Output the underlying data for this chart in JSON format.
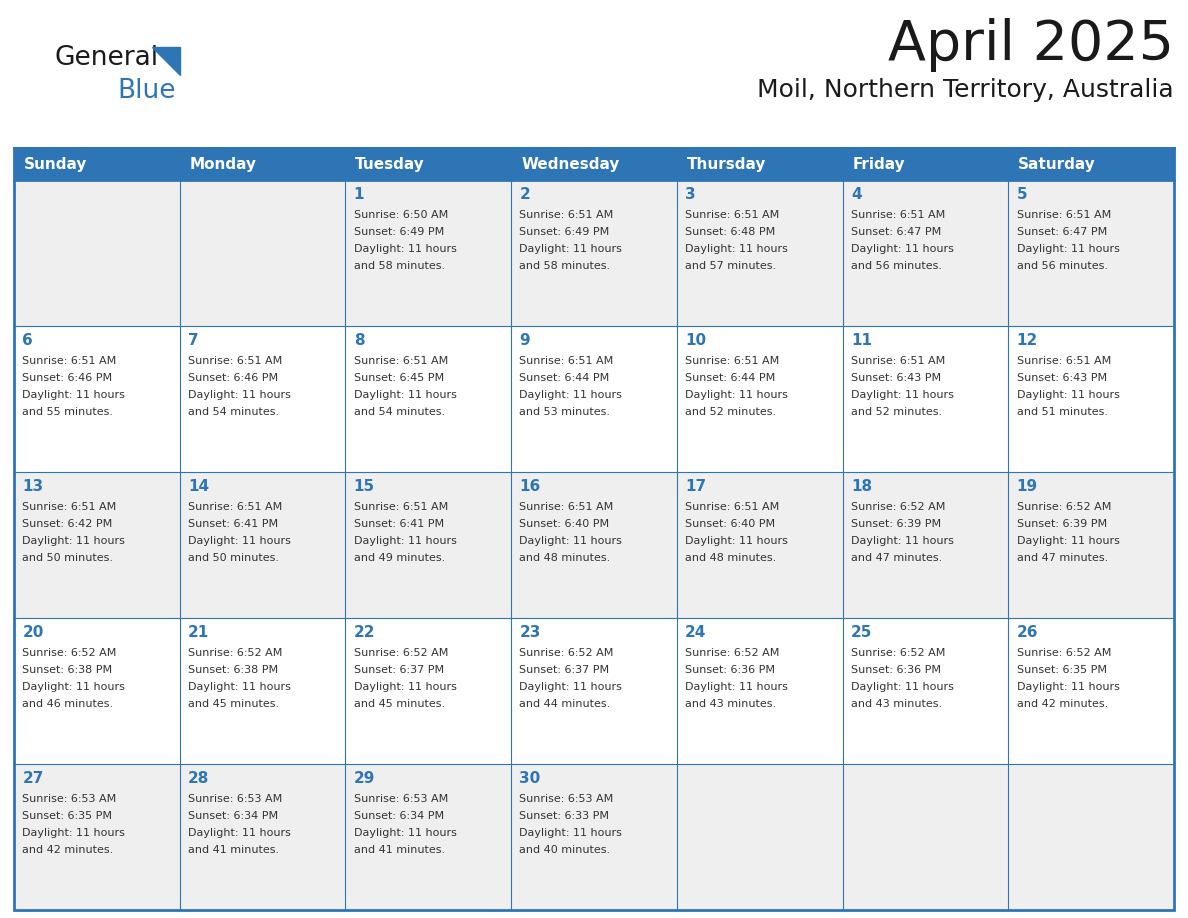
{
  "title": "April 2025",
  "subtitle": "Moil, Northern Territory, Australia",
  "header_bg": "#2E75B6",
  "header_text_color": "#FFFFFF",
  "cell_bg_even": "#EFEFEF",
  "cell_bg_odd": "#FFFFFF",
  "day_headers": [
    "Sunday",
    "Monday",
    "Tuesday",
    "Wednesday",
    "Thursday",
    "Friday",
    "Saturday"
  ],
  "grid_color": "#2E75B6",
  "title_color": "#1a1a1a",
  "subtitle_color": "#1a1a1a",
  "day_num_color": "#2E75B6",
  "cell_text_color": "#333333",
  "logo_general_color": "#1a1a1a",
  "logo_blue_color": "#2E75B6",
  "weeks": [
    [
      {
        "day": "",
        "sunrise": "",
        "sunset": "",
        "daylight": ""
      },
      {
        "day": "",
        "sunrise": "",
        "sunset": "",
        "daylight": ""
      },
      {
        "day": "1",
        "sunrise": "6:50 AM",
        "sunset": "6:49 PM",
        "daylight": "11 hours\nand 58 minutes."
      },
      {
        "day": "2",
        "sunrise": "6:51 AM",
        "sunset": "6:49 PM",
        "daylight": "11 hours\nand 58 minutes."
      },
      {
        "day": "3",
        "sunrise": "6:51 AM",
        "sunset": "6:48 PM",
        "daylight": "11 hours\nand 57 minutes."
      },
      {
        "day": "4",
        "sunrise": "6:51 AM",
        "sunset": "6:47 PM",
        "daylight": "11 hours\nand 56 minutes."
      },
      {
        "day": "5",
        "sunrise": "6:51 AM",
        "sunset": "6:47 PM",
        "daylight": "11 hours\nand 56 minutes."
      }
    ],
    [
      {
        "day": "6",
        "sunrise": "6:51 AM",
        "sunset": "6:46 PM",
        "daylight": "11 hours\nand 55 minutes."
      },
      {
        "day": "7",
        "sunrise": "6:51 AM",
        "sunset": "6:46 PM",
        "daylight": "11 hours\nand 54 minutes."
      },
      {
        "day": "8",
        "sunrise": "6:51 AM",
        "sunset": "6:45 PM",
        "daylight": "11 hours\nand 54 minutes."
      },
      {
        "day": "9",
        "sunrise": "6:51 AM",
        "sunset": "6:44 PM",
        "daylight": "11 hours\nand 53 minutes."
      },
      {
        "day": "10",
        "sunrise": "6:51 AM",
        "sunset": "6:44 PM",
        "daylight": "11 hours\nand 52 minutes."
      },
      {
        "day": "11",
        "sunrise": "6:51 AM",
        "sunset": "6:43 PM",
        "daylight": "11 hours\nand 52 minutes."
      },
      {
        "day": "12",
        "sunrise": "6:51 AM",
        "sunset": "6:43 PM",
        "daylight": "11 hours\nand 51 minutes."
      }
    ],
    [
      {
        "day": "13",
        "sunrise": "6:51 AM",
        "sunset": "6:42 PM",
        "daylight": "11 hours\nand 50 minutes."
      },
      {
        "day": "14",
        "sunrise": "6:51 AM",
        "sunset": "6:41 PM",
        "daylight": "11 hours\nand 50 minutes."
      },
      {
        "day": "15",
        "sunrise": "6:51 AM",
        "sunset": "6:41 PM",
        "daylight": "11 hours\nand 49 minutes."
      },
      {
        "day": "16",
        "sunrise": "6:51 AM",
        "sunset": "6:40 PM",
        "daylight": "11 hours\nand 48 minutes."
      },
      {
        "day": "17",
        "sunrise": "6:51 AM",
        "sunset": "6:40 PM",
        "daylight": "11 hours\nand 48 minutes."
      },
      {
        "day": "18",
        "sunrise": "6:52 AM",
        "sunset": "6:39 PM",
        "daylight": "11 hours\nand 47 minutes."
      },
      {
        "day": "19",
        "sunrise": "6:52 AM",
        "sunset": "6:39 PM",
        "daylight": "11 hours\nand 47 minutes."
      }
    ],
    [
      {
        "day": "20",
        "sunrise": "6:52 AM",
        "sunset": "6:38 PM",
        "daylight": "11 hours\nand 46 minutes."
      },
      {
        "day": "21",
        "sunrise": "6:52 AM",
        "sunset": "6:38 PM",
        "daylight": "11 hours\nand 45 minutes."
      },
      {
        "day": "22",
        "sunrise": "6:52 AM",
        "sunset": "6:37 PM",
        "daylight": "11 hours\nand 45 minutes."
      },
      {
        "day": "23",
        "sunrise": "6:52 AM",
        "sunset": "6:37 PM",
        "daylight": "11 hours\nand 44 minutes."
      },
      {
        "day": "24",
        "sunrise": "6:52 AM",
        "sunset": "6:36 PM",
        "daylight": "11 hours\nand 43 minutes."
      },
      {
        "day": "25",
        "sunrise": "6:52 AM",
        "sunset": "6:36 PM",
        "daylight": "11 hours\nand 43 minutes."
      },
      {
        "day": "26",
        "sunrise": "6:52 AM",
        "sunset": "6:35 PM",
        "daylight": "11 hours\nand 42 minutes."
      }
    ],
    [
      {
        "day": "27",
        "sunrise": "6:53 AM",
        "sunset": "6:35 PM",
        "daylight": "11 hours\nand 42 minutes."
      },
      {
        "day": "28",
        "sunrise": "6:53 AM",
        "sunset": "6:34 PM",
        "daylight": "11 hours\nand 41 minutes."
      },
      {
        "day": "29",
        "sunrise": "6:53 AM",
        "sunset": "6:34 PM",
        "daylight": "11 hours\nand 41 minutes."
      },
      {
        "day": "30",
        "sunrise": "6:53 AM",
        "sunset": "6:33 PM",
        "daylight": "11 hours\nand 40 minutes."
      },
      {
        "day": "",
        "sunrise": "",
        "sunset": "",
        "daylight": ""
      },
      {
        "day": "",
        "sunrise": "",
        "sunset": "",
        "daylight": ""
      },
      {
        "day": "",
        "sunrise": "",
        "sunset": "",
        "daylight": ""
      }
    ]
  ]
}
